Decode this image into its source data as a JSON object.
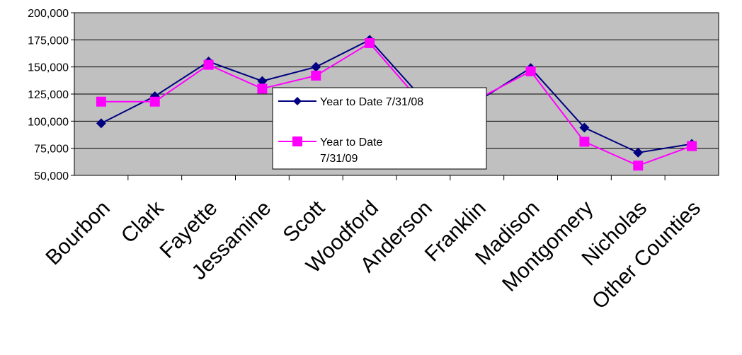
{
  "chart_data": {
    "type": "line",
    "categories": [
      "Bourbon",
      "Clark",
      "Fayette",
      "Jessamine",
      "Scott",
      "Woodford",
      "Anderson",
      "Franklin",
      "Madison",
      "Montgomery",
      "Nicholas",
      "Other Counties"
    ],
    "series": [
      {
        "name": "Year to Date 7/31/08",
        "color": "#000080",
        "marker": "diamond",
        "values": [
          98000,
          123000,
          155000,
          137000,
          150000,
          175000,
          120000,
          118000,
          149000,
          94000,
          71000,
          79000
        ]
      },
      {
        "name": "Year to Date 7/31/09",
        "name_lines": [
          "Year to Date",
          "7/31/09"
        ],
        "color": "#FF00FF",
        "marker": "square",
        "values": [
          118000,
          118000,
          152000,
          130000,
          142000,
          172000,
          115000,
          120000,
          146000,
          81000,
          59000,
          77000
        ]
      }
    ],
    "ylim": [
      50000,
      200000
    ],
    "yticks": [
      "50,000",
      "75,000",
      "100,000",
      "125,000",
      "150,000",
      "175,000",
      "200,000"
    ],
    "grid": true,
    "plot_background": "#C0C0C0",
    "legend_position": "center"
  }
}
